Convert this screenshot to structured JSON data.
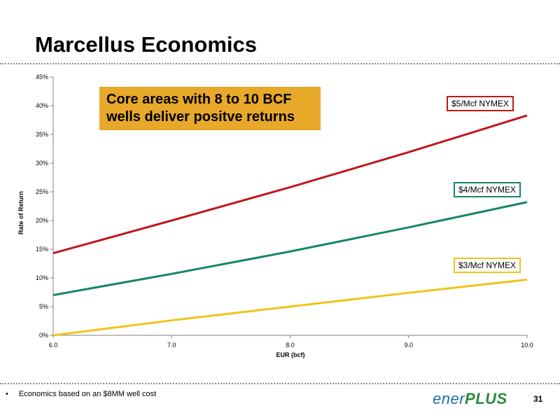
{
  "slide": {
    "title": "Marcellus Economics",
    "callout_line1": "Core areas with 8 to 10 BCF",
    "callout_line2": "wells deliver positve returns",
    "footnote": "Economics based on an $8MM well cost",
    "bullet": "•",
    "logo_main": "ener",
    "logo_plus": "PLUS",
    "page_number": "31"
  },
  "colors": {
    "series_5": "#c0171c",
    "series_4": "#15866a",
    "series_3": "#f0c419",
    "callout_bg": "#e8a82a",
    "axis": "#808080"
  },
  "chart_data": {
    "type": "line",
    "title": "",
    "xlabel": "EUR (bcf)",
    "ylabel": "Rate of Return",
    "xlim": [
      6.0,
      10.0
    ],
    "ylim": [
      0,
      45
    ],
    "x_ticks": [
      "6.0",
      "7.0",
      "8.0",
      "9.0",
      "10.0"
    ],
    "x_tick_values": [
      6,
      7,
      8,
      9,
      10
    ],
    "y_ticks": [
      "0%",
      "5%",
      "10%",
      "15%",
      "20%",
      "25%",
      "30%",
      "35%",
      "40%",
      "45%"
    ],
    "y_tick_values": [
      0,
      5,
      10,
      15,
      20,
      25,
      30,
      35,
      40,
      45
    ],
    "grid": false,
    "x": [
      6,
      7,
      8,
      9,
      10
    ],
    "series": [
      {
        "name": "$5/Mcf NYMEX",
        "color_key": "series_5",
        "values": [
          14.3,
          20.0,
          25.8,
          31.9,
          38.3
        ]
      },
      {
        "name": "$4/Mcf NYMEX",
        "color_key": "series_4",
        "values": [
          7.0,
          10.7,
          14.6,
          18.8,
          23.2
        ]
      },
      {
        "name": "$3/Mcf NYMEX",
        "color_key": "series_3",
        "values": [
          0.0,
          2.6,
          5.0,
          7.4,
          9.7
        ]
      }
    ]
  }
}
